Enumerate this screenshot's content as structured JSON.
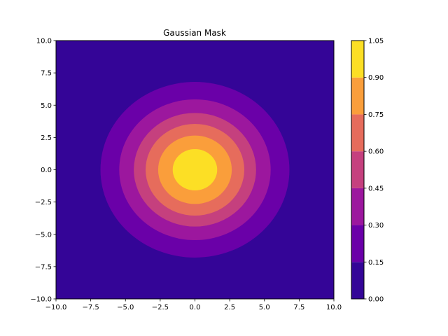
{
  "chart_data": {
    "type": "contourf",
    "title": "Gaussian Mask",
    "xlabel": "",
    "ylabel": "",
    "xlim": [
      -10,
      10
    ],
    "ylim": [
      -10,
      10
    ],
    "x_ticks": [
      "−10.0",
      "−7.5",
      "−5.0",
      "−2.5",
      "0.0",
      "2.5",
      "5.0",
      "7.5",
      "10.0"
    ],
    "y_ticks": [
      "−10.0",
      "−7.5",
      "−5.0",
      "−2.5",
      "0.0",
      "2.5",
      "5.0",
      "7.5",
      "10.0"
    ],
    "x_tick_values": [
      -10,
      -7.5,
      -5,
      -2.5,
      0,
      2.5,
      5,
      7.5,
      10
    ],
    "y_tick_values": [
      -10,
      -7.5,
      -5,
      -2.5,
      0,
      2.5,
      5,
      7.5,
      10
    ],
    "function": "exp(-(x^2 + y^2) / (2 * 3.5^2))",
    "levels": [
      0.0,
      0.15,
      0.3,
      0.45,
      0.6,
      0.75,
      0.9,
      1.05
    ],
    "colorbar_ticks": [
      "0.00",
      "0.15",
      "0.30",
      "0.45",
      "0.60",
      "0.75",
      "0.90",
      "1.05"
    ],
    "level_bands": [
      {
        "range": [
          0.0,
          0.15
        ],
        "color": "#340597"
      },
      {
        "range": [
          0.15,
          0.3
        ],
        "color": "#6a00a8"
      },
      {
        "range": [
          0.3,
          0.45
        ],
        "color": "#9c179e"
      },
      {
        "range": [
          0.45,
          0.6
        ],
        "color": "#c5407e"
      },
      {
        "range": [
          0.6,
          0.75
        ],
        "color": "#e66c5c"
      },
      {
        "range": [
          0.75,
          0.9
        ],
        "color": "#fa9e3b"
      },
      {
        "range": [
          0.9,
          1.05
        ],
        "color": "#fcdf25"
      }
    ],
    "contour_radii": [
      {
        "level": 0.15,
        "radius": 6.8
      },
      {
        "level": 0.3,
        "radius": 5.45
      },
      {
        "level": 0.45,
        "radius": 4.4
      },
      {
        "level": 0.6,
        "radius": 3.55
      },
      {
        "level": 0.75,
        "radius": 2.65
      },
      {
        "level": 0.9,
        "radius": 1.6
      }
    ],
    "grid": false,
    "colorbar": "right"
  }
}
